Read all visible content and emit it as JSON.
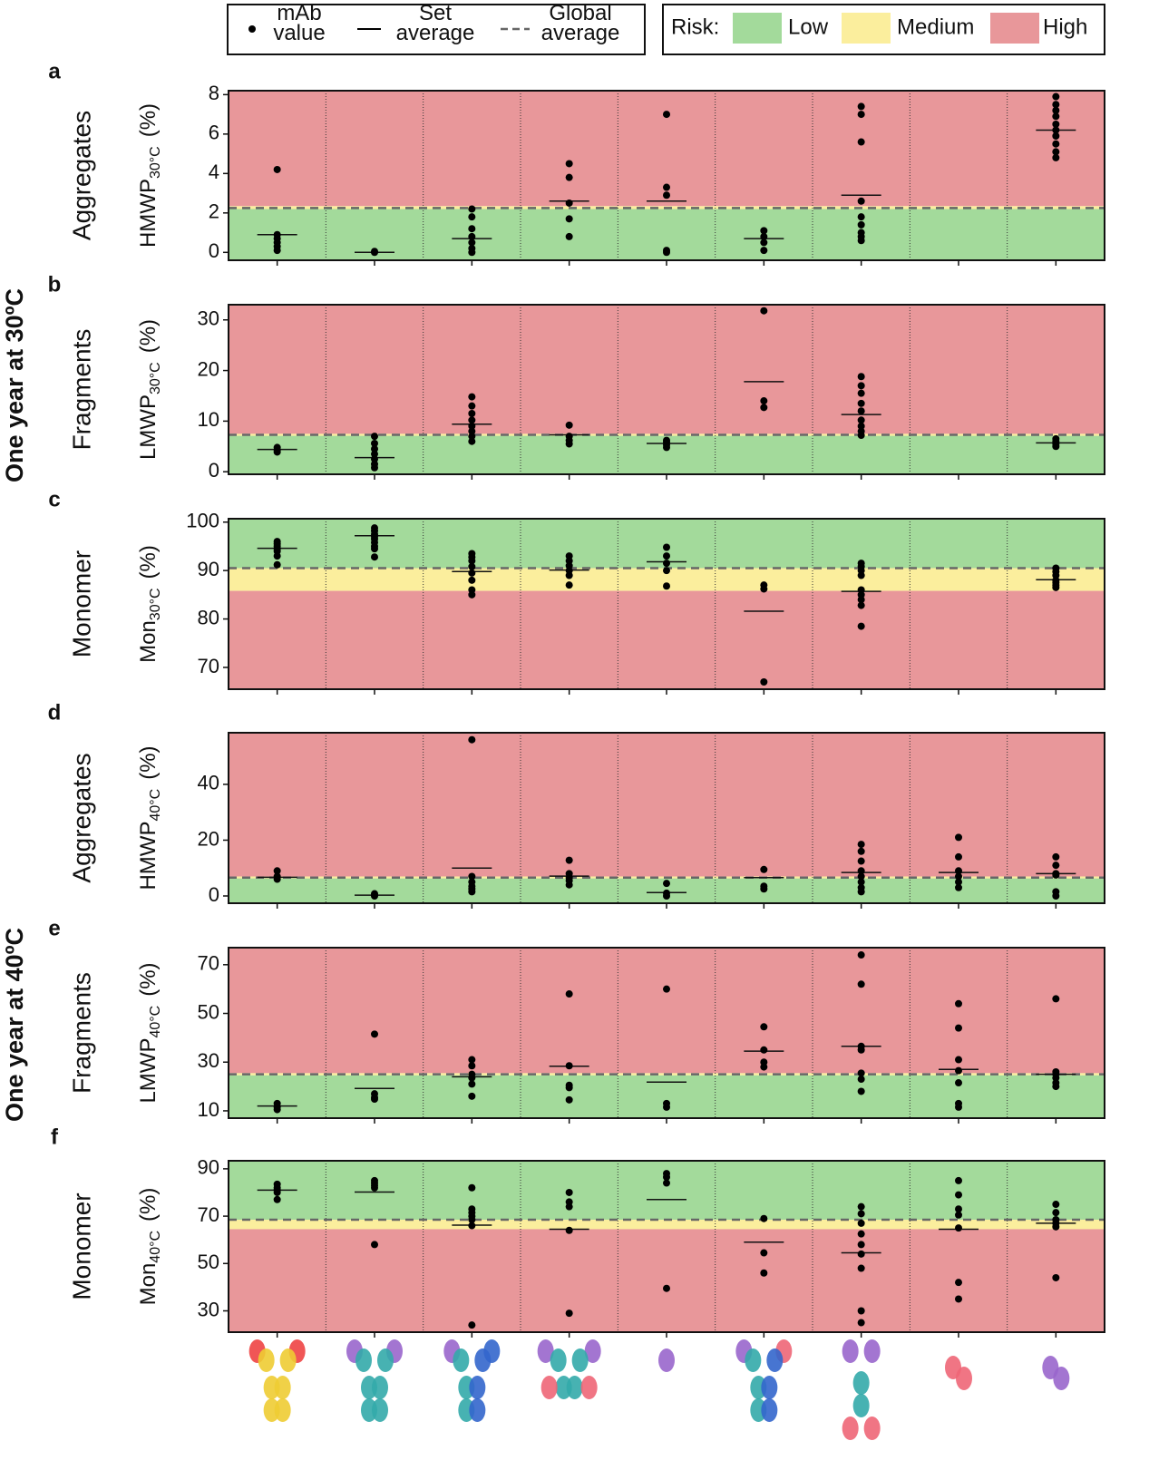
{
  "legend": {
    "items": [
      {
        "lines": [
          "mAb",
          "value"
        ]
      },
      {
        "lines": [
          "Set",
          "average"
        ]
      },
      {
        "lines": [
          "Global",
          "average"
        ]
      }
    ]
  },
  "risk_legend": {
    "title": "Risk:",
    "levels": [
      {
        "name": "Low",
        "color": "#a3da9b"
      },
      {
        "name": "Medium",
        "color": "#fbee9d"
      },
      {
        "name": "High",
        "color": "#e8979a"
      }
    ]
  },
  "conditions": [
    "One year at 30ºC",
    "One year at 40ºC"
  ],
  "chart_data": [
    {
      "type": "strip",
      "panel": "a",
      "row_label": "Aggregates",
      "ylabel": {
        "text": "HMWP",
        "sub": "30°C",
        "unit": "(%)"
      },
      "ylim": [
        -0.4,
        8.2
      ],
      "yticks": [
        0,
        2,
        4,
        6,
        8
      ],
      "categories": [
        null,
        null,
        null,
        null,
        null,
        null,
        null,
        null,
        null
      ],
      "groups": [
        {
          "points": [
            4.2,
            0.9,
            0.7,
            0.5,
            0.3,
            0.1
          ],
          "mean": 0.9
        },
        {
          "points": [
            0.05,
            0.0
          ],
          "mean": 0.0
        },
        {
          "points": [
            2.2,
            1.8,
            1.2,
            0.8,
            0.5,
            0.2,
            0.0
          ],
          "mean": 0.7
        },
        {
          "points": [
            4.5,
            3.8,
            2.5,
            1.7,
            0.8
          ],
          "mean": 2.6
        },
        {
          "points": [
            7.0,
            3.3,
            2.9,
            0.1,
            0.0
          ],
          "mean": 2.6
        },
        {
          "points": [
            1.1,
            0.8,
            0.5,
            0.1
          ],
          "mean": 0.7
        },
        {
          "points": [
            7.4,
            7.0,
            5.6,
            2.6,
            1.8,
            1.4,
            1.0,
            0.8,
            0.6
          ],
          "mean": 2.9
        },
        {
          "points": [],
          "mean": null
        },
        {
          "points": [
            7.9,
            7.5,
            7.2,
            6.9,
            6.5,
            6.2,
            5.9,
            5.5,
            5.1,
            4.8
          ],
          "mean": 6.2
        }
      ],
      "global_average": 2.25,
      "risk_bands": [
        [
          -0.4,
          2.2
        ],
        [
          2.2,
          2.35
        ],
        [
          2.35,
          8.2
        ]
      ]
    },
    {
      "type": "strip",
      "panel": "b",
      "row_label": "Fragments",
      "ylabel": {
        "text": "LMWP",
        "sub": "30°C",
        "unit": "(%)"
      },
      "ylim": [
        -0.5,
        33
      ],
      "yticks": [
        0,
        10,
        20,
        30
      ],
      "categories": [
        null,
        null,
        null,
        null,
        null,
        null,
        null,
        null,
        null
      ],
      "groups": [
        {
          "points": [
            4.8,
            4.3,
            3.9
          ],
          "mean": 4.4
        },
        {
          "points": [
            7.0,
            5.6,
            4.5,
            3.5,
            2.5,
            1.5,
            0.8
          ],
          "mean": 2.8
        },
        {
          "points": [
            14.8,
            13.0,
            11.5,
            10.2,
            9.0,
            8.0,
            7.0,
            6.0
          ],
          "mean": 9.4
        },
        {
          "points": [
            9.2,
            7.0,
            6.2,
            5.5
          ],
          "mean": 7.3
        },
        {
          "points": [
            6.2,
            5.8,
            5.3,
            4.8
          ],
          "mean": 5.6
        },
        {
          "points": [
            31.8,
            14.0,
            12.7
          ],
          "mean": 17.8
        },
        {
          "points": [
            18.8,
            17.0,
            15.5,
            13.5,
            12.0,
            10.2,
            9.0,
            8.0,
            7.2
          ],
          "mean": 11.3
        },
        {
          "points": [],
          "mean": null
        },
        {
          "points": [
            6.5,
            6.0,
            5.5,
            5.0
          ],
          "mean": 5.7
        }
      ],
      "global_average": 7.3,
      "risk_bands": [
        [
          -0.5,
          7.1
        ],
        [
          7.1,
          7.5
        ],
        [
          7.5,
          33
        ]
      ]
    },
    {
      "type": "strip",
      "panel": "c",
      "row_label": "Monomer",
      "ylabel": {
        "text": "Mon",
        "sub": "30°C",
        "unit": "(%)"
      },
      "ylim": [
        65.5,
        100.7
      ],
      "yticks": [
        70,
        80,
        90,
        100
      ],
      "categories": [
        null,
        null,
        null,
        null,
        null,
        null,
        null,
        null,
        null
      ],
      "groups": [
        {
          "points": [
            96.0,
            95.5,
            95.0,
            94.5,
            94.0,
            93.0,
            91.2
          ],
          "mean": 94.6
        },
        {
          "points": [
            98.8,
            98.2,
            97.5,
            97.0,
            96.5,
            95.8,
            95.0,
            94.5,
            92.8
          ],
          "mean": 97.2
        },
        {
          "points": [
            93.5,
            92.8,
            92.0,
            90.8,
            89.5,
            88.0,
            86.0,
            85.0
          ],
          "mean": 89.8
        },
        {
          "points": [
            93.0,
            92.0,
            91.0,
            90.0,
            89.0,
            87.0
          ],
          "mean": 90.1
        },
        {
          "points": [
            94.8,
            93.0,
            91.5,
            90.0,
            86.8
          ],
          "mean": 91.8
        },
        {
          "points": [
            87.0,
            86.2,
            67.0
          ],
          "mean": 81.6
        },
        {
          "points": [
            91.5,
            90.8,
            90.0,
            89.0,
            86.0,
            85.0,
            84.0,
            82.8,
            78.5
          ],
          "mean": 85.7
        },
        {
          "points": [],
          "mean": null
        },
        {
          "points": [
            90.5,
            89.8,
            89.0,
            88.0,
            87.5,
            87.0,
            86.5
          ],
          "mean": 88.1
        }
      ],
      "global_average": 90.5,
      "risk_bands": [
        [
          90.5,
          100.7
        ],
        [
          85.8,
          90.5
        ],
        [
          65.5,
          85.8
        ]
      ]
    },
    {
      "type": "strip",
      "panel": "d",
      "row_label": "Aggregates",
      "ylabel": {
        "text": "HMWP",
        "sub": "40°C",
        "unit": "(%)"
      },
      "ylim": [
        -2.6,
        58.5
      ],
      "yticks": [
        0,
        20,
        40
      ],
      "categories": [
        null,
        null,
        null,
        null,
        null,
        null,
        null,
        null,
        null
      ],
      "groups": [
        {
          "points": [
            9.0,
            7.0,
            6.0
          ],
          "mean": 6.7
        },
        {
          "points": [
            0.8,
            0.3,
            0.0
          ],
          "mean": 0.3
        },
        {
          "points": [
            56.0,
            7.0,
            5.0,
            3.5,
            2.5,
            1.5
          ],
          "mean": 10.0
        },
        {
          "points": [
            12.8,
            8.0,
            6.5,
            5.5,
            4.0
          ],
          "mean": 7.1
        },
        {
          "points": [
            4.5,
            1.0,
            0.0
          ],
          "mean": 1.2
        },
        {
          "points": [
            9.5,
            3.5,
            2.5
          ],
          "mean": 6.6
        },
        {
          "points": [
            18.5,
            16.0,
            12.5,
            9.0,
            7.0,
            5.0,
            3.0,
            1.5
          ],
          "mean": 8.4
        },
        {
          "points": [
            21.0,
            14.0,
            9.0,
            7.0,
            5.0,
            3.0
          ],
          "mean": 8.4
        },
        {
          "points": [
            14.0,
            11.0,
            8.0,
            7.5,
            1.5,
            0.0
          ],
          "mean": 8.0
        }
      ],
      "global_average": 6.6,
      "risk_bands": [
        [
          -2.6,
          6.3
        ],
        [
          6.3,
          7.0
        ],
        [
          7.0,
          58.5
        ]
      ]
    },
    {
      "type": "strip",
      "panel": "e",
      "row_label": "Fragments",
      "ylabel": {
        "text": "LMWP",
        "sub": "40°C",
        "unit": "(%)"
      },
      "ylim": [
        7,
        77
      ],
      "yticks": [
        10,
        30,
        50,
        70
      ],
      "categories": [
        null,
        null,
        null,
        null,
        null,
        null,
        null,
        null,
        null
      ],
      "groups": [
        {
          "points": [
            13.0,
            11.5,
            10.5
          ],
          "mean": 12.0
        },
        {
          "points": [
            41.5,
            17.0,
            15.5,
            14.8
          ],
          "mean": 19.2
        },
        {
          "points": [
            31.0,
            28.5,
            25.0,
            23.5,
            21.0,
            16.0
          ],
          "mean": 24.0
        },
        {
          "points": [
            58.0,
            28.5,
            20.5,
            19.5,
            14.5
          ],
          "mean": 28.3
        },
        {
          "points": [
            60.0,
            13.0,
            11.5
          ],
          "mean": 21.8
        },
        {
          "points": [
            44.5,
            35.0,
            30.0,
            28.0
          ],
          "mean": 34.5
        },
        {
          "points": [
            74.0,
            62.0,
            36.5,
            35.0,
            25.5,
            23.0,
            18.0
          ],
          "mean": 36.5
        },
        {
          "points": [
            54.0,
            44.0,
            31.0,
            26.5,
            21.5,
            13.0,
            11.5
          ],
          "mean": 27.0
        },
        {
          "points": [
            56.0,
            26.0,
            25.0,
            23.5,
            21.5,
            20.0
          ],
          "mean": 25.0
        }
      ],
      "global_average": 25.0,
      "risk_bands": [
        [
          7,
          24.6
        ],
        [
          24.6,
          25.5
        ],
        [
          25.5,
          77
        ]
      ]
    },
    {
      "type": "strip",
      "panel": "f",
      "row_label": "Monomer",
      "ylabel": {
        "text": "Mon",
        "sub": "40°C",
        "unit": "(%)"
      },
      "ylim": [
        21,
        93.4
      ],
      "yticks": [
        30,
        50,
        70,
        90
      ],
      "categories": [
        null,
        null,
        null,
        null,
        null,
        null,
        null,
        null,
        null
      ],
      "groups": [
        {
          "points": [
            83.5,
            82.0,
            81.0,
            80.0,
            77.0
          ],
          "mean": 81.0
        },
        {
          "points": [
            85.0,
            84.0,
            83.0,
            82.0,
            58.0
          ],
          "mean": 80.2
        },
        {
          "points": [
            82.0,
            73.0,
            71.5,
            70.0,
            68.5,
            66.0,
            24.0
          ],
          "mean": 66.2
        },
        {
          "points": [
            80.0,
            76.0,
            74.0,
            64.0,
            29.0
          ],
          "mean": 64.5
        },
        {
          "points": [
            88.0,
            86.5,
            84.0,
            39.5
          ],
          "mean": 77.0
        },
        {
          "points": [
            69.0,
            54.5,
            46.0
          ],
          "mean": 59.0
        },
        {
          "points": [
            74.0,
            71.0,
            67.0,
            62.5,
            58.0,
            54.0,
            48.0,
            30.0,
            25.0
          ],
          "mean": 54.5
        },
        {
          "points": [
            85.0,
            79.0,
            73.0,
            70.5,
            65.0,
            42.0,
            35.0
          ],
          "mean": 64.5
        },
        {
          "points": [
            75.0,
            71.5,
            68.5,
            67.0,
            65.5,
            44.0
          ],
          "mean": 67.0
        }
      ],
      "global_average": 68.5,
      "risk_bands": [
        [
          68.5,
          93.4
        ],
        [
          64.5,
          68.5
        ],
        [
          21,
          64.5
        ]
      ]
    }
  ]
}
